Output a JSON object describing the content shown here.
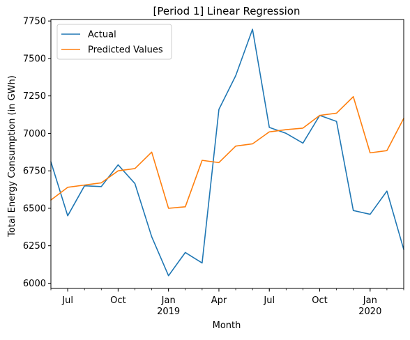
{
  "chart_data": {
    "type": "line",
    "title": "[Period 1] Linear Regression",
    "xlabel": "Month",
    "ylabel": "Total Energy Consumption (in GWh)",
    "x": [
      "2018-06",
      "2018-07",
      "2018-08",
      "2018-09",
      "2018-10",
      "2018-11",
      "2018-12",
      "2019-01",
      "2019-02",
      "2019-03",
      "2019-04",
      "2019-05",
      "2019-06",
      "2019-07",
      "2019-08",
      "2019-09",
      "2019-10",
      "2019-11",
      "2019-12",
      "2020-01",
      "2020-02",
      "2020-03"
    ],
    "xlim": [
      "2018-06",
      "2020-03"
    ],
    "ylim": [
      5965,
      7760
    ],
    "yticks": [
      6000,
      6250,
      6500,
      6750,
      7000,
      7250,
      7500,
      7750
    ],
    "xticks": [
      {
        "x": "2018-07",
        "label": "Jul",
        "sublabel": ""
      },
      {
        "x": "2018-10",
        "label": "Oct",
        "sublabel": ""
      },
      {
        "x": "2019-01",
        "label": "Jan",
        "sublabel": "2019"
      },
      {
        "x": "2019-04",
        "label": "Apr",
        "sublabel": ""
      },
      {
        "x": "2019-07",
        "label": "Jul",
        "sublabel": ""
      },
      {
        "x": "2019-10",
        "label": "Oct",
        "sublabel": ""
      },
      {
        "x": "2020-01",
        "label": "Jan",
        "sublabel": "2020"
      }
    ],
    "grid": false,
    "legend_position": "top-left",
    "series": [
      {
        "name": "Actual",
        "color": "#1f77b4",
        "values": [
          6810,
          6450,
          6650,
          6645,
          6790,
          6665,
          6310,
          6050,
          6205,
          6135,
          7160,
          7385,
          7695,
          7040,
          7000,
          6935,
          7120,
          7080,
          6485,
          6460,
          6615,
          6225
        ]
      },
      {
        "name": "Predicted Values",
        "color": "#ff7f0e",
        "values": [
          6555,
          6640,
          6655,
          6670,
          6750,
          6765,
          6875,
          6500,
          6510,
          6820,
          6805,
          6915,
          6930,
          7010,
          7025,
          7035,
          7120,
          7135,
          7245,
          6870,
          6885,
          7100
        ]
      }
    ]
  }
}
